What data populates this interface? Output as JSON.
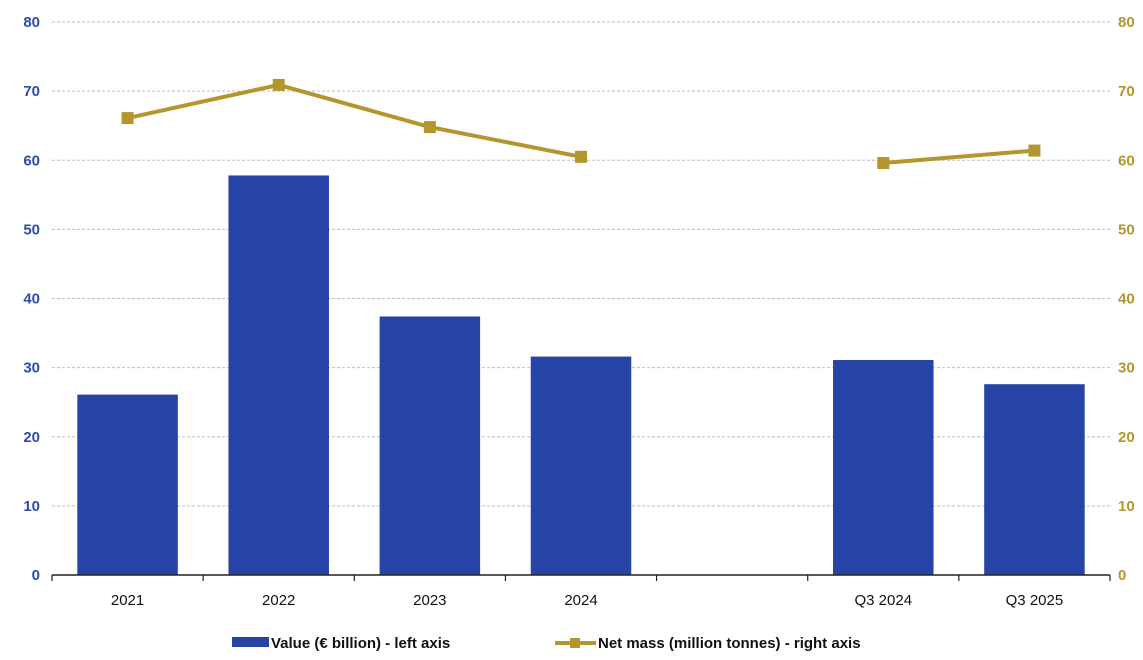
{
  "chart_data": {
    "type": "bar",
    "title": "",
    "categories": [
      "2021",
      "2022",
      "2023",
      "2024",
      "",
      "Q3 2024",
      "Q3 2025"
    ],
    "series": [
      {
        "name": "Value (€ billion) - left axis",
        "type": "bar",
        "axis": "left",
        "values": [
          26.1,
          57.8,
          37.4,
          31.6,
          null,
          31.1,
          27.6
        ]
      },
      {
        "name": "Net mass (million tonnes) - right axis",
        "type": "line",
        "axis": "right",
        "values": [
          66.1,
          70.9,
          64.8,
          60.5,
          null,
          59.6,
          61.4
        ]
      }
    ],
    "y_left": {
      "min": 0,
      "max": 80,
      "ticks": [
        "0",
        "10",
        "20",
        "30",
        "40",
        "50",
        "60",
        "70",
        "80"
      ]
    },
    "y_right": {
      "min": 0,
      "max": 80,
      "ticks": [
        "0",
        "10",
        "20",
        "30",
        "40",
        "50",
        "60",
        "70",
        "80"
      ]
    },
    "grid": true,
    "legend_position": "bottom",
    "colors": {
      "bar": "#2643a6",
      "line": "#b3962e",
      "left_axis_text": "#2f4bb0",
      "right_axis_text": "#b3962e",
      "grid": "#bfbfbf"
    }
  }
}
